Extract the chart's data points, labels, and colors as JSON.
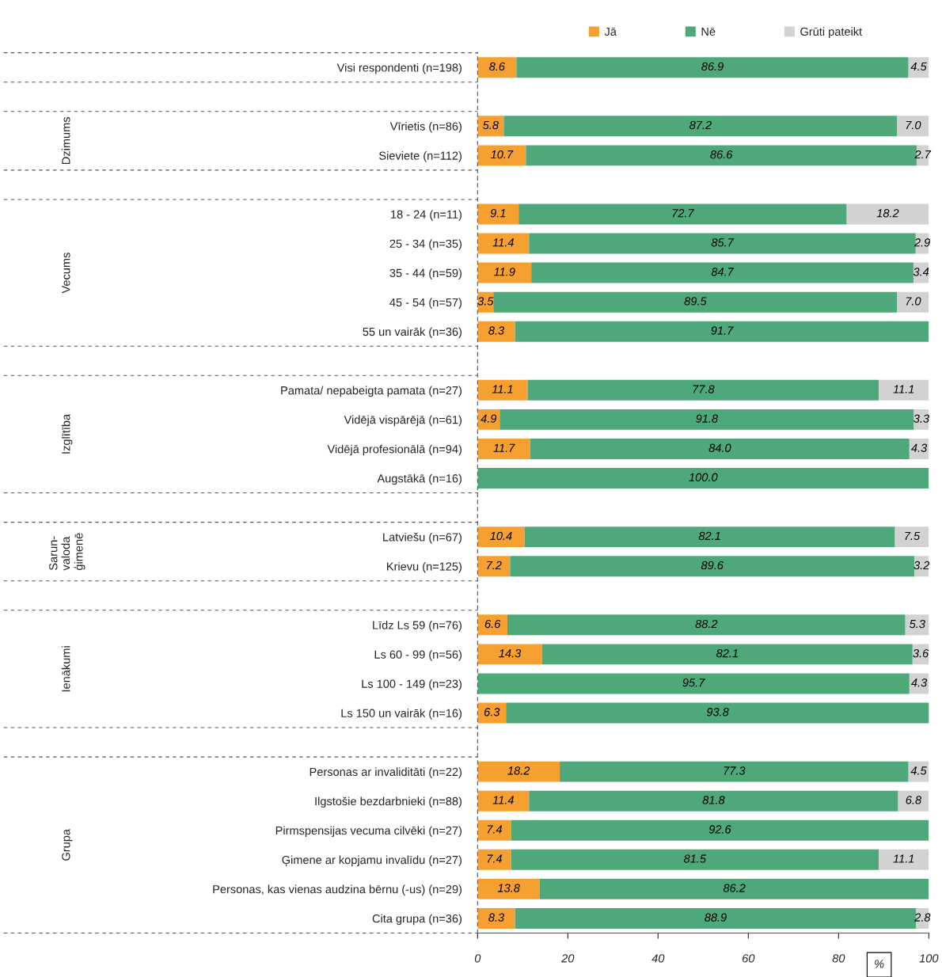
{
  "chart_data": {
    "type": "bar",
    "orientation": "horizontal",
    "stacked": true,
    "legend": "top",
    "xlabel": "%",
    "xlim": [
      0,
      100
    ],
    "xticks": [
      0,
      20,
      40,
      60,
      80,
      100
    ],
    "categories": [
      "Visi respondenti (n=198)",
      null,
      "Vīrietis (n=86)",
      "Sieviete (n=112)",
      null,
      "18 - 24 (n=11)",
      "25 - 34 (n=35)",
      "35 - 44 (n=59)",
      "45 - 54 (n=57)",
      "55 un vairāk (n=36)",
      null,
      "Pamata/ nepabeigta pamata (n=27)",
      "Vidējā vispārējā (n=61)",
      "Vidējā profesionālā (n=94)",
      "Augstākā (n=16)",
      null,
      "Latviešu (n=67)",
      "Krievu (n=125)",
      null,
      "Līdz Ls 59 (n=76)",
      "Ls 60 - 99 (n=56)",
      "Ls 100 - 149 (n=23)",
      "Ls 150 un vairāk (n=16)",
      null,
      "Personas ar invaliditāti (n=22)",
      "Ilgstošie bezdarbnieki (n=88)",
      "Pirmspensijas vecuma cilvēki (n=27)",
      "Ģimene ar kopjamu invalīdu (n=27)",
      "Personas, kas vienas audzina bērnu (-us) (n=29)",
      "Cita grupa (n=36)"
    ],
    "series": [
      {
        "name": "Jā",
        "color": "#f5a030",
        "values": [
          8.6,
          null,
          5.8,
          10.7,
          null,
          9.1,
          11.4,
          11.9,
          3.5,
          8.3,
          null,
          11.1,
          4.9,
          11.7,
          null,
          null,
          10.4,
          7.2,
          null,
          6.6,
          14.3,
          null,
          6.3,
          null,
          18.2,
          11.4,
          7.4,
          7.4,
          13.8,
          8.3
        ],
        "value_labels": [
          "8.6",
          null,
          "5.8",
          "10.7",
          null,
          "9.1",
          "11.4",
          "11.9",
          "3.5",
          "8.3",
          null,
          "11.1",
          "4.9",
          "11.7",
          null,
          null,
          "10.4",
          "7.2",
          null,
          "6.6",
          "14.3",
          null,
          "6.3",
          null,
          "18.2",
          "11.4",
          "7.4",
          "7.4",
          "13.8",
          "8.3"
        ]
      },
      {
        "name": "Nē",
        "color": "#4ea87a",
        "values": [
          86.9,
          null,
          87.2,
          86.6,
          null,
          72.7,
          85.7,
          84.7,
          89.5,
          91.7,
          null,
          77.8,
          91.8,
          84.0,
          100.0,
          null,
          82.1,
          89.6,
          null,
          88.2,
          82.1,
          95.7,
          93.8,
          null,
          77.3,
          81.8,
          92.6,
          81.5,
          86.2,
          88.9
        ],
        "value_labels": [
          "86.9",
          null,
          "87.2",
          "86.6",
          null,
          "72.7",
          "85.7",
          "84.7",
          "89.5",
          "91.7",
          null,
          "77.8",
          "91.8",
          "84.0",
          "100.0",
          null,
          "82.1",
          "89.6",
          null,
          "88.2",
          "82.1",
          "95.7",
          "93.8",
          null,
          "77.3",
          "81.8",
          "92.6",
          "81.5",
          "86.2",
          "88.9"
        ]
      },
      {
        "name": "Grūti pateikt",
        "color": "#d2d2d2",
        "values": [
          4.5,
          null,
          7.0,
          2.7,
          null,
          18.2,
          2.9,
          3.4,
          7.0,
          null,
          null,
          11.1,
          3.3,
          4.3,
          null,
          null,
          7.5,
          3.2,
          null,
          5.3,
          3.6,
          4.3,
          null,
          null,
          4.5,
          6.8,
          null,
          11.1,
          null,
          2.8
        ],
        "value_labels": [
          "4.5",
          null,
          "7.0",
          "2.7",
          null,
          "18.2",
          "2.9",
          "3.4",
          "7.0",
          null,
          null,
          "11.1",
          "3.3",
          "4.3",
          null,
          null,
          "7.5",
          "3.2",
          null,
          "5.3",
          "3.6",
          "4.3",
          null,
          null,
          "4.5",
          "6.8",
          null,
          "11.1",
          null,
          "2.8"
        ]
      }
    ],
    "annotations": [
      "Dzimums",
      "Vecums",
      "Izglītība",
      "Sarun-\nvaloda\nģimenē",
      "Ienākumi",
      "Grupa"
    ]
  }
}
